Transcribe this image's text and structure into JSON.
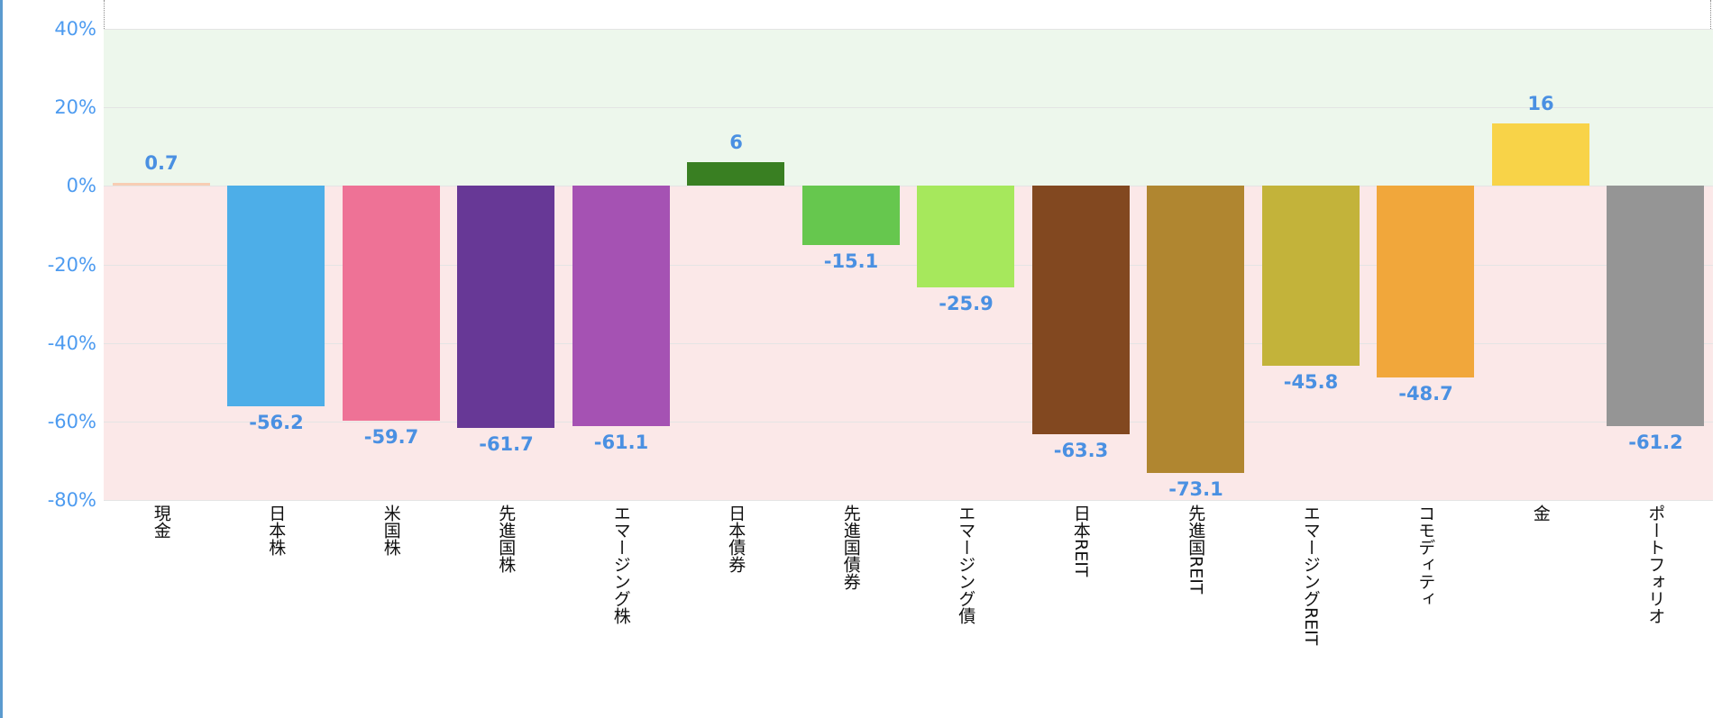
{
  "chart_data": {
    "type": "bar",
    "title": "",
    "xlabel": "",
    "ylabel": "",
    "ylim": [
      -80,
      40
    ],
    "yticks": [
      "40%",
      "20%",
      "0%",
      "-20%",
      "-40%",
      "-60%",
      "-80%"
    ],
    "ytick_values": [
      40,
      20,
      0,
      -20,
      -40,
      -60,
      -80
    ],
    "grid": true,
    "legend": null,
    "background_bands": {
      "positive": "#edf7ec",
      "negative": "#fbe8e8"
    },
    "categories": [
      "現金",
      "日本株",
      "米国株",
      "先進国株",
      "エマージング株",
      "日本債券",
      "先進国債券",
      "エマージング債",
      "日本REIT",
      "先進国REIT",
      "エマージングREIT",
      "コモディティ",
      "金",
      "ポートフォリオ"
    ],
    "values": [
      0.7,
      -56.2,
      -59.7,
      -61.7,
      -61.1,
      6,
      -15.1,
      -25.9,
      -63.3,
      -73.1,
      -45.8,
      -48.7,
      16,
      -61.2
    ],
    "value_labels": [
      "0.7",
      "-56.2",
      "-59.7",
      "-61.7",
      "-61.1",
      "6",
      "-15.1",
      "-25.9",
      "-63.3",
      "-73.1",
      "-45.8",
      "-48.7",
      "16",
      "-61.2"
    ],
    "colors": [
      "#f8cdb4",
      "#4daee8",
      "#ee7296",
      "#673896",
      "#a552b3",
      "#397f22",
      "#66c74e",
      "#a6e85c",
      "#824820",
      "#b08630",
      "#c3b33a",
      "#f1a73b",
      "#f8d348",
      "#959595"
    ]
  },
  "accent": {
    "label_color": "#4a90e2",
    "axis_color": "#4d9bf0",
    "border_color": "#5b9bcf"
  }
}
